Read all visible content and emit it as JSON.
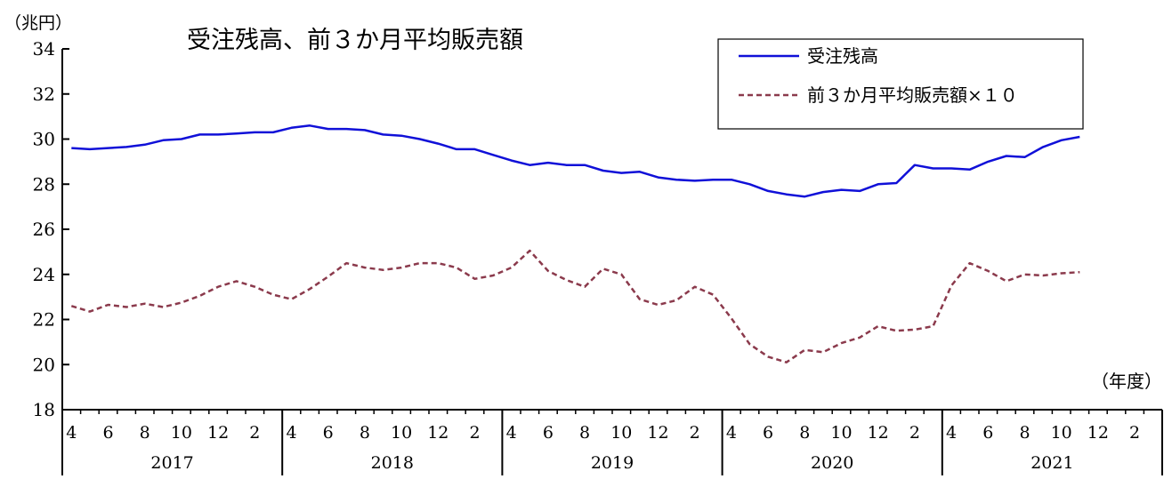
{
  "chart_data": {
    "type": "line",
    "title": "受注残高、前３か月平均販売額",
    "y_unit_label": "（兆円）",
    "x_unit_label": "（年度）",
    "ylim": [
      18,
      34
    ],
    "y_ticks": [
      "18",
      "20",
      "22",
      "24",
      "26",
      "28",
      "30",
      "32",
      "34"
    ],
    "grid": false,
    "legend_position": "top-right",
    "x_month_labels": [
      "4",
      "6",
      "8",
      "10",
      "12",
      "2"
    ],
    "fiscal_years": [
      "2017",
      "2018",
      "2019",
      "2020",
      "2021"
    ],
    "series": [
      {
        "name": "受注残高",
        "style": "solid",
        "color": "#1010d8",
        "values": [
          29.6,
          29.55,
          29.6,
          29.65,
          29.75,
          29.95,
          30.0,
          30.2,
          30.2,
          30.25,
          30.3,
          30.3,
          30.5,
          30.6,
          30.45,
          30.45,
          30.4,
          30.2,
          30.15,
          30.0,
          29.8,
          29.55,
          29.55,
          29.3,
          29.05,
          28.85,
          28.95,
          28.85,
          28.85,
          28.6,
          28.5,
          28.55,
          28.3,
          28.2,
          28.15,
          28.2,
          28.2,
          28.0,
          27.7,
          27.55,
          27.45,
          27.65,
          27.75,
          27.7,
          28.0,
          28.05,
          28.85,
          28.7,
          28.7,
          28.65,
          29.0,
          29.25,
          29.2,
          29.65,
          29.95,
          30.1
        ]
      },
      {
        "name": "前３か月平均販売額×１０",
        "style": "dashed",
        "color": "#8b3a4c",
        "values": [
          22.6,
          22.35,
          22.65,
          22.55,
          22.7,
          22.55,
          22.75,
          23.05,
          23.45,
          23.7,
          23.45,
          23.1,
          22.9,
          23.35,
          23.9,
          24.5,
          24.3,
          24.2,
          24.3,
          24.5,
          24.5,
          24.3,
          23.8,
          23.95,
          24.3,
          25.05,
          24.15,
          23.75,
          23.45,
          24.25,
          24.0,
          22.9,
          22.65,
          22.85,
          23.45,
          23.1,
          22.05,
          20.9,
          20.35,
          20.1,
          20.65,
          20.55,
          20.95,
          21.2,
          21.7,
          21.5,
          21.55,
          21.7,
          23.5,
          24.5,
          24.15,
          23.7,
          24.0,
          23.95,
          24.05,
          24.1
        ]
      }
    ]
  }
}
